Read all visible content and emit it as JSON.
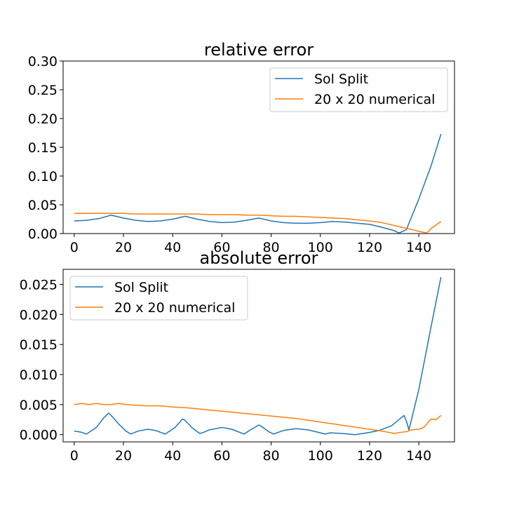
{
  "chart_data": [
    {
      "type": "line",
      "title": "relative error",
      "xlabel": "",
      "ylabel": "",
      "xlim": [
        -4.5,
        154.5
      ],
      "ylim": [
        0.0,
        0.3
      ],
      "xticks": [
        0,
        20,
        40,
        60,
        80,
        100,
        120,
        140
      ],
      "xtick_labels": [
        "0",
        "20",
        "40",
        "60",
        "80",
        "100",
        "120",
        "140"
      ],
      "yticks": [
        0.0,
        0.05,
        0.1,
        0.15,
        0.2,
        0.25,
        0.3
      ],
      "ytick_labels": [
        "0.00",
        "0.05",
        "0.10",
        "0.15",
        "0.20",
        "0.25",
        "0.30"
      ],
      "grid": false,
      "legend_position": "upper right",
      "series": [
        {
          "name": "Sol Split",
          "color": "#1f77b4",
          "x": [
            0,
            5,
            10,
            15,
            20,
            25,
            30,
            35,
            40,
            45,
            50,
            55,
            60,
            65,
            70,
            75,
            80,
            85,
            90,
            95,
            100,
            105,
            110,
            115,
            120,
            125,
            130,
            132,
            134,
            135,
            136,
            140,
            145,
            149
          ],
          "y": [
            0.022,
            0.023,
            0.026,
            0.032,
            0.027,
            0.023,
            0.021,
            0.022,
            0.025,
            0.03,
            0.025,
            0.021,
            0.019,
            0.02,
            0.023,
            0.027,
            0.022,
            0.019,
            0.018,
            0.018,
            0.019,
            0.021,
            0.02,
            0.018,
            0.016,
            0.011,
            0.005,
            0.001,
            0.005,
            0.007,
            0.018,
            0.06,
            0.118,
            0.173
          ]
        },
        {
          "name": "20 x 20 numerical",
          "color": "#ff7f0e",
          "x": [
            0,
            5,
            10,
            15,
            20,
            25,
            30,
            35,
            40,
            45,
            50,
            55,
            60,
            65,
            70,
            75,
            80,
            85,
            90,
            95,
            100,
            105,
            110,
            115,
            120,
            125,
            130,
            135,
            138,
            140,
            142,
            143,
            144,
            145,
            147,
            149
          ],
          "y": [
            0.035,
            0.035,
            0.035,
            0.035,
            0.035,
            0.034,
            0.034,
            0.034,
            0.034,
            0.034,
            0.034,
            0.033,
            0.033,
            0.033,
            0.032,
            0.032,
            0.031,
            0.03,
            0.03,
            0.029,
            0.028,
            0.027,
            0.026,
            0.024,
            0.022,
            0.019,
            0.014,
            0.009,
            0.006,
            0.004,
            0.002,
            0.001,
            0.004,
            0.009,
            0.015,
            0.021
          ]
        }
      ]
    },
    {
      "type": "line",
      "title": "absolute error",
      "xlabel": "",
      "ylabel": "",
      "xlim": [
        -4.5,
        154.5
      ],
      "ylim": [
        -0.0012,
        0.0275
      ],
      "xticks": [
        0,
        20,
        40,
        60,
        80,
        100,
        120,
        140
      ],
      "xtick_labels": [
        "0",
        "20",
        "40",
        "60",
        "80",
        "100",
        "120",
        "140"
      ],
      "yticks": [
        0.0,
        0.005,
        0.01,
        0.015,
        0.02,
        0.025
      ],
      "ytick_labels": [
        "0.000",
        "0.005",
        "0.010",
        "0.015",
        "0.020",
        "0.025"
      ],
      "grid": false,
      "legend_position": "upper left",
      "series": [
        {
          "name": "Sol Split",
          "color": "#1f77b4",
          "x": [
            0,
            3,
            5,
            9,
            12,
            14,
            15,
            18,
            21,
            23,
            26,
            30,
            33,
            37,
            41,
            44,
            45,
            48,
            51,
            52,
            55,
            60,
            64,
            69,
            72,
            75,
            76,
            79,
            81,
            85,
            90,
            95,
            100,
            102,
            104,
            109,
            114,
            119,
            124,
            129,
            134,
            135,
            136,
            140,
            145,
            149
          ],
          "y": [
            0.0006,
            0.0004,
            0.0001,
            0.0012,
            0.0028,
            0.0036,
            0.0032,
            0.0018,
            0.0006,
            0.0001,
            0.0006,
            0.0009,
            0.0007,
            0.0001,
            0.0012,
            0.0026,
            0.0024,
            0.0011,
            0.0002,
            0.0003,
            0.0008,
            0.0012,
            0.0009,
            0.0001,
            0.0009,
            0.0016,
            0.0014,
            0.0005,
            0.0001,
            0.0007,
            0.001,
            0.0008,
            0.0003,
            0.0001,
            0.0003,
            0.0002,
            0.0,
            0.0003,
            0.0007,
            0.0015,
            0.0032,
            0.0022,
            0.0008,
            0.0075,
            0.018,
            0.0262
          ]
        },
        {
          "name": "20 x 20 numerical",
          "color": "#ff7f0e",
          "x": [
            0,
            3,
            6,
            9,
            12,
            15,
            18,
            21,
            25,
            30,
            35,
            40,
            45,
            50,
            55,
            60,
            65,
            70,
            75,
            80,
            85,
            90,
            95,
            100,
            105,
            110,
            115,
            120,
            125,
            130,
            133,
            135,
            137,
            140,
            142,
            145,
            147,
            149
          ],
          "y": [
            0.005,
            0.0052,
            0.005,
            0.0052,
            0.005,
            0.005,
            0.0052,
            0.005,
            0.0049,
            0.0048,
            0.0048,
            0.0046,
            0.0045,
            0.0043,
            0.0041,
            0.0039,
            0.0037,
            0.0035,
            0.0033,
            0.0031,
            0.0029,
            0.0027,
            0.0024,
            0.0021,
            0.0018,
            0.0015,
            0.0012,
            0.0009,
            0.0006,
            0.0002,
            0.0004,
            0.0005,
            0.0008,
            0.0009,
            0.0012,
            0.0026,
            0.0025,
            0.0032
          ]
        }
      ]
    }
  ]
}
